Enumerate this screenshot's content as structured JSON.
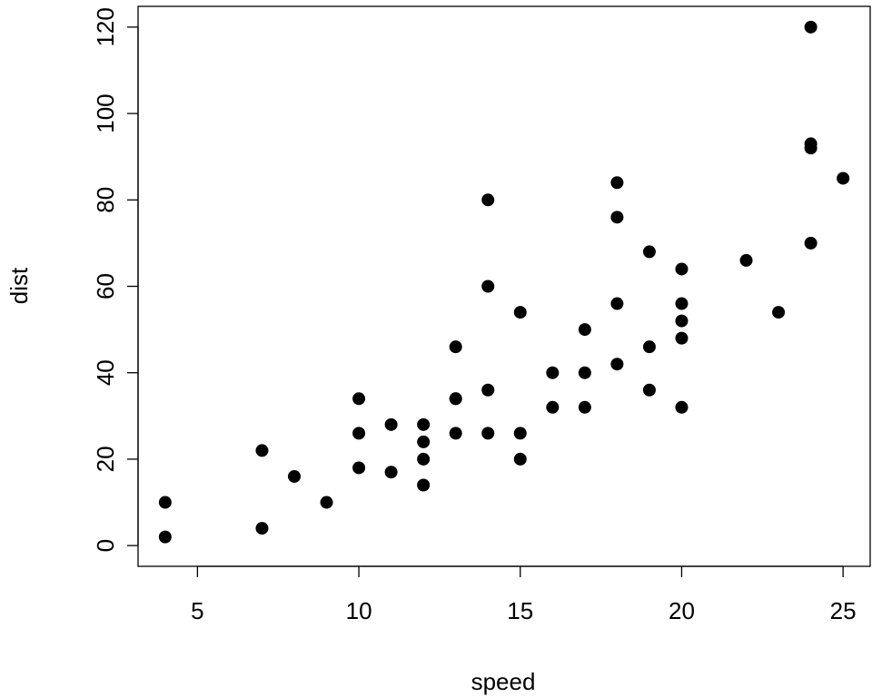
{
  "chart_data": {
    "type": "scatter",
    "x_label": "speed",
    "y_label": "dist",
    "x": [
      4,
      4,
      7,
      7,
      8,
      9,
      10,
      10,
      10,
      11,
      11,
      12,
      12,
      12,
      12,
      13,
      13,
      13,
      13,
      14,
      14,
      14,
      14,
      15,
      15,
      15,
      16,
      16,
      17,
      17,
      17,
      18,
      18,
      18,
      18,
      19,
      19,
      19,
      20,
      20,
      20,
      20,
      20,
      22,
      23,
      24,
      24,
      24,
      24,
      25
    ],
    "values": [
      2,
      10,
      4,
      22,
      16,
      10,
      18,
      26,
      34,
      17,
      28,
      14,
      20,
      24,
      28,
      26,
      34,
      34,
      46,
      26,
      36,
      60,
      80,
      20,
      26,
      54,
      32,
      40,
      32,
      40,
      50,
      42,
      56,
      76,
      84,
      36,
      46,
      68,
      32,
      48,
      52,
      56,
      64,
      66,
      54,
      70,
      92,
      93,
      120,
      85
    ],
    "color": "#000000",
    "xlim": [
      3.16,
      25.84
    ],
    "xticks": [
      5,
      10,
      15,
      20,
      25
    ],
    "ylim": [
      -4.8,
      124.8
    ],
    "yticks": [
      0,
      20,
      40,
      60,
      80,
      100,
      120
    ]
  }
}
